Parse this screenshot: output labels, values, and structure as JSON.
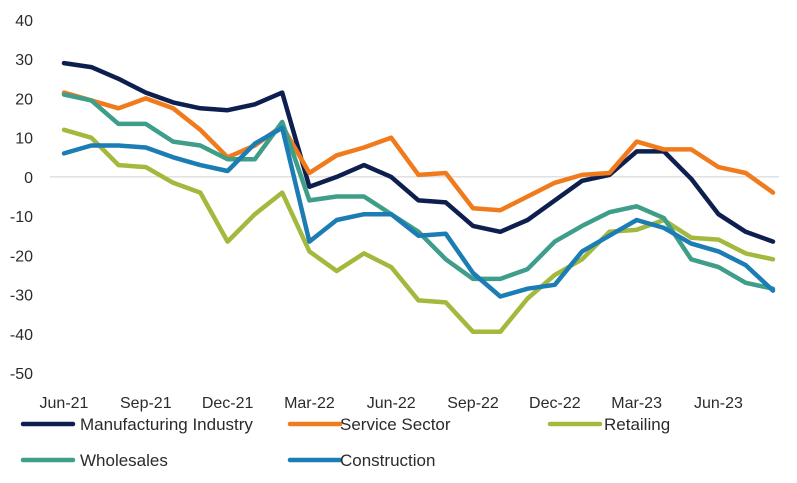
{
  "chart_data": {
    "type": "line",
    "x": [
      "Jun-21",
      "Jul-21",
      "Aug-21",
      "Sep-21",
      "Oct-21",
      "Nov-21",
      "Dec-21",
      "Jan-22",
      "Feb-22",
      "Mar-22",
      "Apr-22",
      "May-22",
      "Jun-22",
      "Jul-22",
      "Aug-22",
      "Sep-22",
      "Oct-22",
      "Nov-22",
      "Dec-22",
      "Jan-23",
      "Feb-23",
      "Mar-23",
      "Apr-23",
      "May-23",
      "Jun-23",
      "Jul-23",
      "Aug-23"
    ],
    "x_tick_labels": [
      "Jun-21",
      "Sep-21",
      "Dec-21",
      "Mar-22",
      "Jun-22",
      "Sep-22",
      "Dec-22",
      "Mar-23",
      "Jun-23"
    ],
    "ylim": [
      -50,
      40
    ],
    "y_ticks": [
      40,
      30,
      20,
      10,
      0,
      -10,
      -20,
      -30,
      -40,
      -50
    ],
    "grid": false,
    "legend_position": "bottom",
    "series": [
      {
        "name": "Manufacturing Industry",
        "color": "#0d1f4f",
        "values": [
          29,
          28,
          25,
          21.5,
          19,
          17.5,
          17,
          18.5,
          21.5,
          -2.5,
          0,
          3,
          0,
          -6,
          -6.5,
          -12.5,
          -14,
          -11,
          -6,
          -1,
          0.5,
          6.5,
          6.5,
          -0.5,
          -9.5,
          -14,
          -16.5
        ]
      },
      {
        "name": "Service Sector",
        "color": "#f07b1d",
        "values": [
          21.5,
          19.5,
          17.5,
          20,
          17.5,
          12,
          5,
          8,
          13,
          1,
          5.5,
          7.5,
          10,
          0.5,
          1,
          -8,
          -8.5,
          -5,
          -1.5,
          0.5,
          1,
          9,
          7,
          7,
          2.5,
          1,
          -4
        ]
      },
      {
        "name": "Retailing",
        "color": "#a2b93e",
        "values": [
          12,
          10,
          3,
          2.5,
          -1.5,
          -4,
          -16.5,
          -9.5,
          -4,
          -19,
          -24,
          -19.5,
          -23,
          -31.5,
          -32,
          -39.5,
          -39.5,
          -31,
          -25,
          -21,
          -14,
          -13.5,
          -11,
          -15.5,
          -16,
          -19.5,
          -21
        ]
      },
      {
        "name": "Wholesales",
        "color": "#3f9e89",
        "values": [
          21,
          19.5,
          13.5,
          13.5,
          9,
          8,
          4.5,
          4.5,
          14,
          -6,
          -5,
          -5,
          -9.5,
          -14,
          -21,
          -26,
          -26,
          -23.5,
          -16.5,
          -12.5,
          -9,
          -7.5,
          -10.5,
          -21,
          -23,
          -27,
          -28.5
        ]
      },
      {
        "name": "Construction",
        "color": "#1c7cb4",
        "values": [
          6,
          8,
          8,
          7.5,
          5,
          3,
          1.5,
          8.5,
          12.5,
          -16.5,
          -11,
          -9.5,
          -9.5,
          -15,
          -14.5,
          -24.5,
          -30.5,
          -28.5,
          -27.5,
          -19,
          -15,
          -11,
          -13,
          -17,
          -19,
          -22.5,
          -29
        ]
      }
    ]
  }
}
